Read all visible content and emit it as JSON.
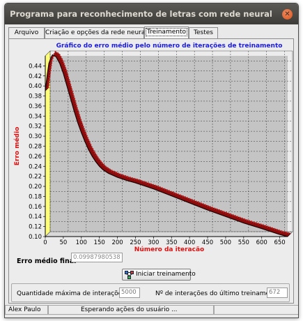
{
  "window": {
    "title": "Programa para reconhecimento de letras com rede neural"
  },
  "tabs": [
    {
      "label": "Arquivo"
    },
    {
      "label": "Criação e opções da rede neural"
    },
    {
      "label": "Treinamento"
    },
    {
      "label": "Testes"
    }
  ],
  "chart_data": {
    "type": "line",
    "title": "Gráfico do erro médio pelo número de iterações de treinamento",
    "xlabel": "Número da iteração",
    "ylabel": "Erro médio",
    "xlim": [
      0,
      672
    ],
    "ylim": [
      0.1,
      0.46
    ],
    "x_ticks": [
      "0",
      "50",
      "100",
      "150",
      "200",
      "250",
      "300",
      "350",
      "400",
      "450",
      "500",
      "550",
      "600",
      "650"
    ],
    "y_ticks": [
      "0.10",
      "0.12",
      "0.14",
      "0.16",
      "0.18",
      "0.20",
      "0.22",
      "0.24",
      "0.26",
      "0.28",
      "0.30",
      "0.32",
      "0.34",
      "0.36",
      "0.38",
      "0.40",
      "0.42",
      "0.44"
    ],
    "grid": true,
    "series": [
      {
        "x": [
          0,
          5,
          10,
          15,
          20,
          30,
          40,
          50,
          60,
          70,
          80,
          90,
          100,
          110,
          120,
          130,
          140,
          150,
          160,
          175,
          200,
          225,
          250,
          275,
          300,
          350,
          400,
          450,
          500,
          550,
          600,
          650,
          672
        ],
        "y": [
          0.39,
          0.42,
          0.445,
          0.455,
          0.462,
          0.458,
          0.445,
          0.425,
          0.4,
          0.375,
          0.35,
          0.327,
          0.307,
          0.289,
          0.273,
          0.26,
          0.249,
          0.24,
          0.233,
          0.226,
          0.218,
          0.212,
          0.207,
          0.201,
          0.195,
          0.181,
          0.167,
          0.153,
          0.14,
          0.127,
          0.116,
          0.104,
          0.1
        ]
      }
    ]
  },
  "final_error": {
    "label": "Erro médio final",
    "value": "0.09987980538"
  },
  "start_button": {
    "label": "Iniciar treinamento"
  },
  "iterations": {
    "max_label": "Quantidade máxima de interações",
    "max_value": "5000",
    "last_label": "Nº de interações do último treinamento",
    "last_value": "672"
  },
  "status": {
    "user": "Alex Paulo",
    "message": "Esperando ações do usuário ..."
  }
}
